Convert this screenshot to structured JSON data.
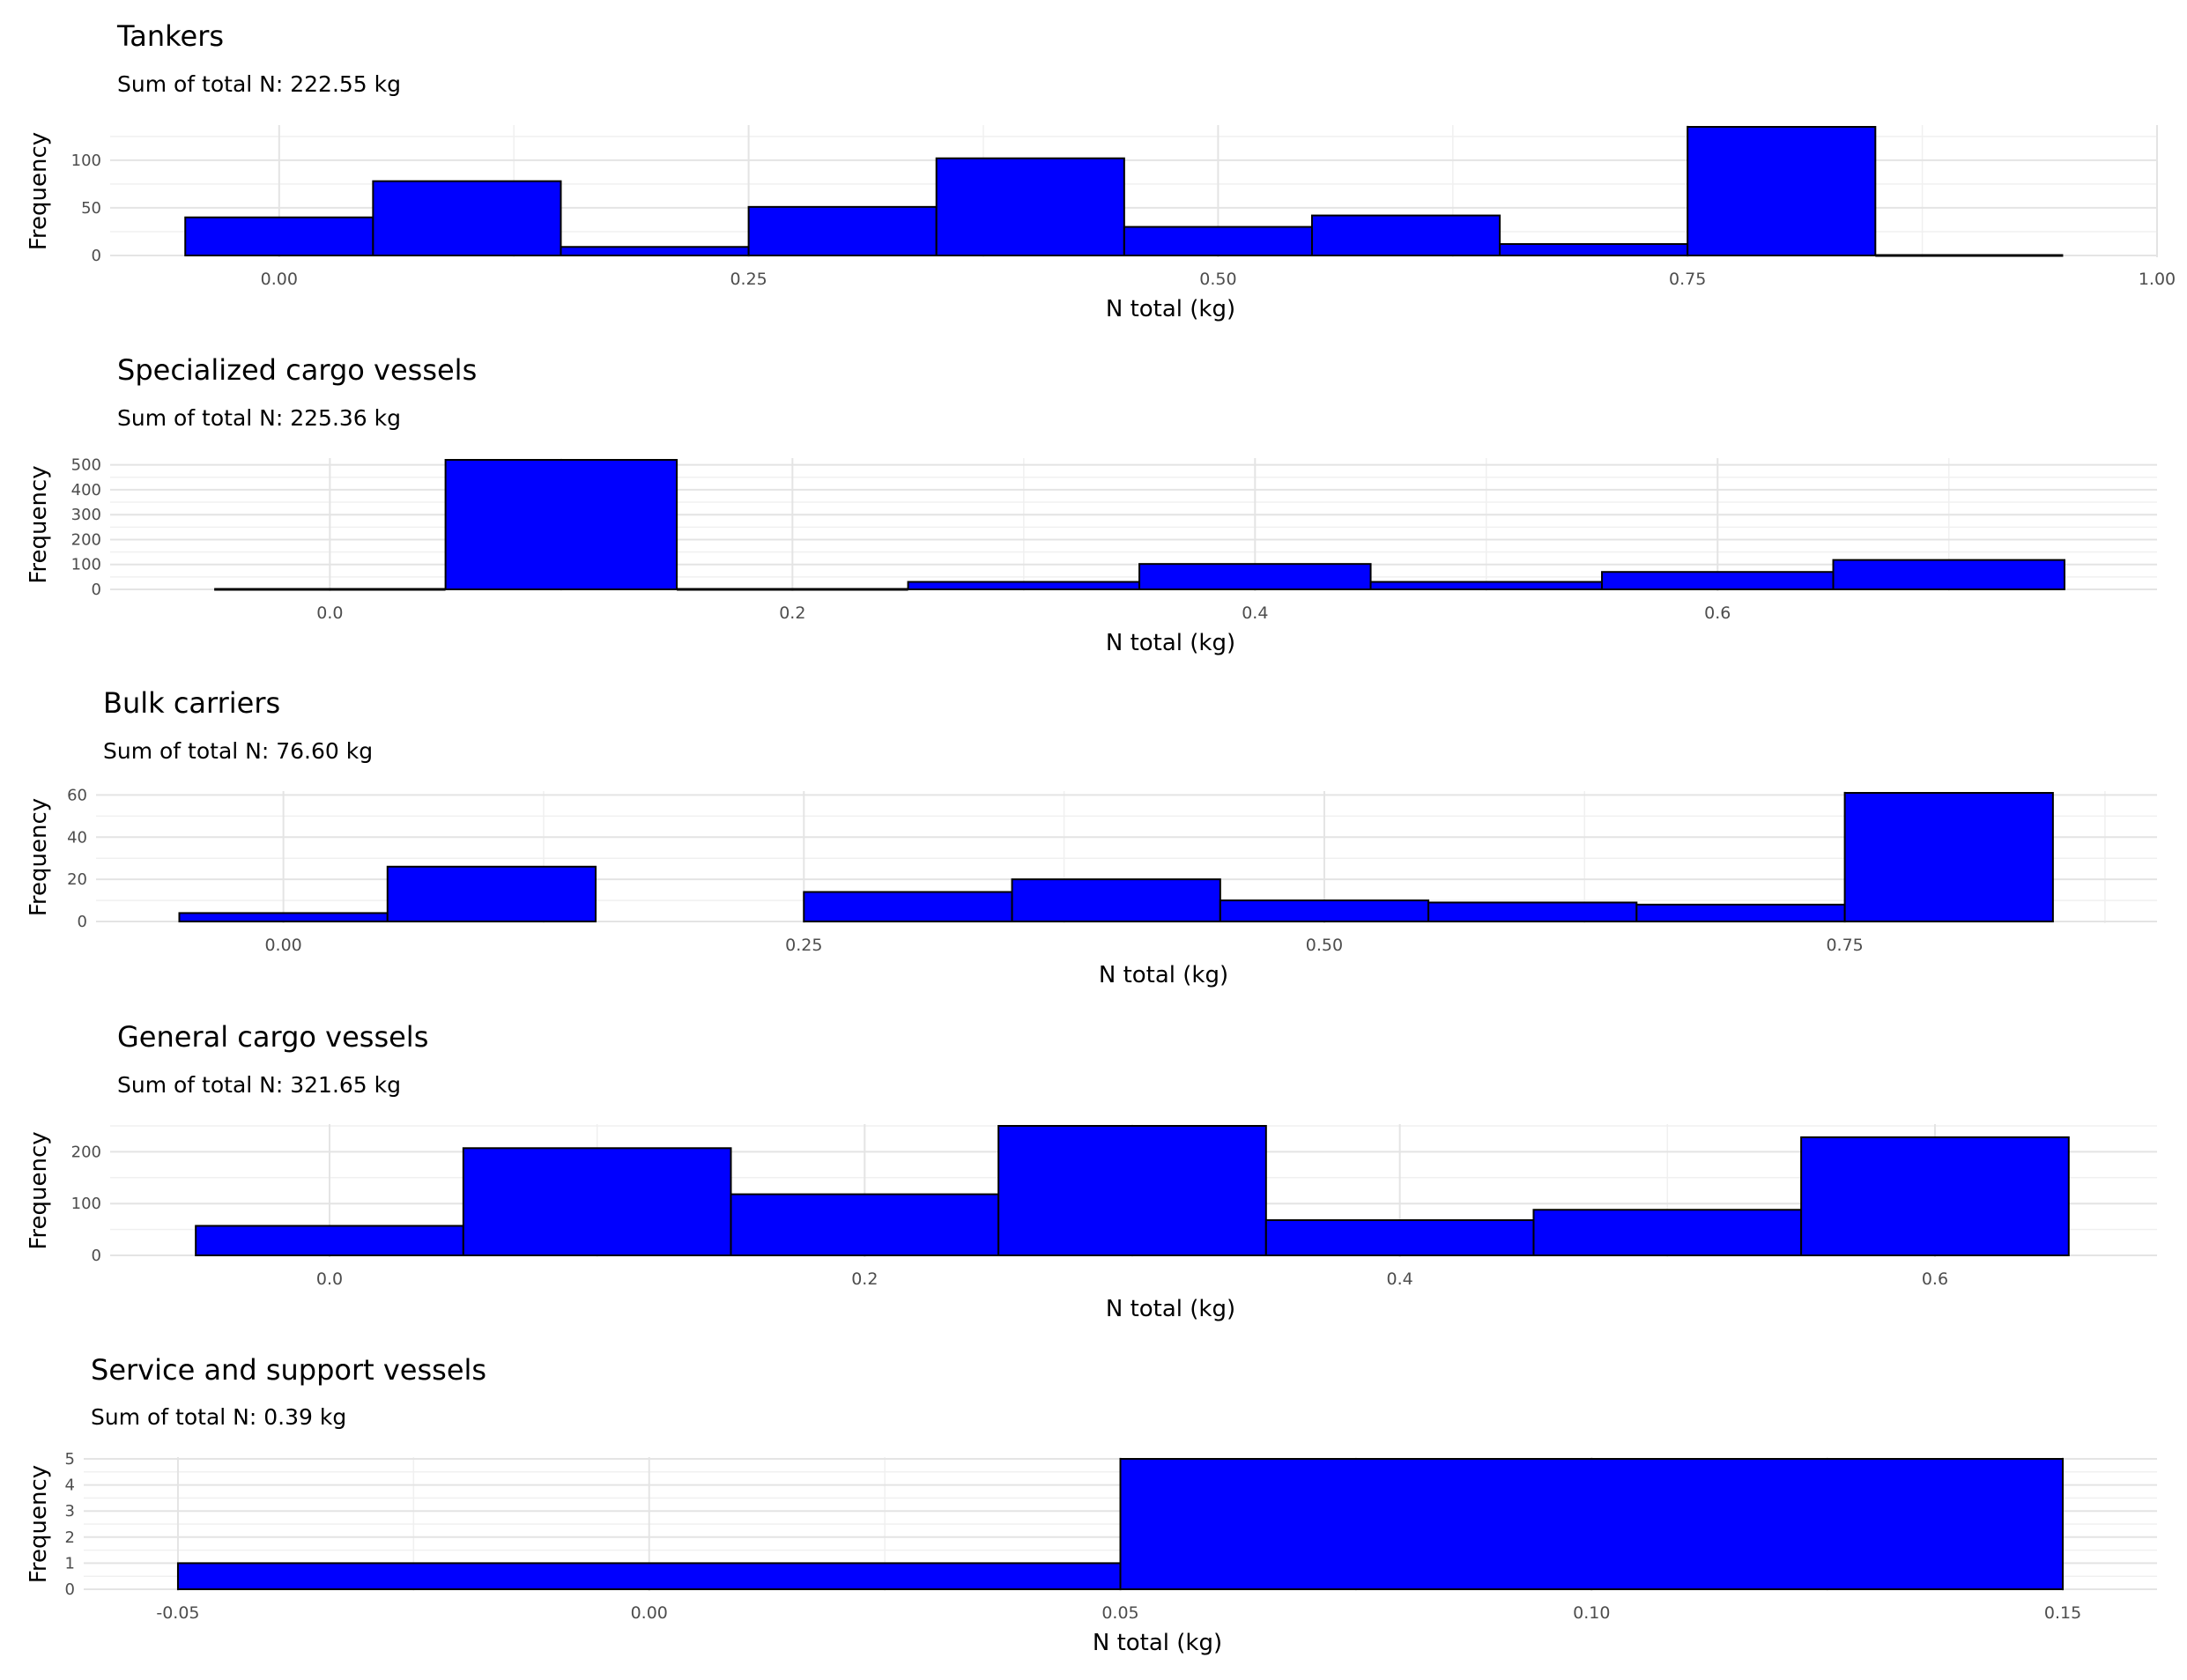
{
  "colors": {
    "bar_fill": "#0000ff",
    "bar_stroke": "#000000",
    "grid_major": "#e4e4e4",
    "grid_minor": "#f0f0f0",
    "text": "#000000",
    "tick_text": "#4d4d4d"
  },
  "chart_data": [
    {
      "type": "bar",
      "title": "Tankers",
      "subtitle": "Sum of total N: 222.55 kg",
      "xlabel": "N total (kg)",
      "ylabel": "Frequency",
      "bin_width": 0.1,
      "bins": [
        {
          "x0": -0.05,
          "x1": 0.05,
          "count": 40
        },
        {
          "x0": 0.05,
          "x1": 0.15,
          "count": 78
        },
        {
          "x0": 0.15,
          "x1": 0.25,
          "count": 9
        },
        {
          "x0": 0.25,
          "x1": 0.35,
          "count": 51
        },
        {
          "x0": 0.35,
          "x1": 0.45,
          "count": 102
        },
        {
          "x0": 0.45,
          "x1": 0.55,
          "count": 30
        },
        {
          "x0": 0.55,
          "x1": 0.65,
          "count": 42
        },
        {
          "x0": 0.65,
          "x1": 0.75,
          "count": 12
        },
        {
          "x0": 0.75,
          "x1": 0.85,
          "count": 135
        },
        {
          "x0": 0.85,
          "x1": 0.95,
          "count": 1
        }
      ],
      "xlim": [
        -0.09,
        1.0
      ],
      "x_ticks": [
        "0.00",
        "0.25",
        "0.50",
        "0.75",
        "1.00"
      ],
      "x_tick_values": [
        0.0,
        0.25,
        0.5,
        0.75,
        1.0
      ],
      "ylim": [
        0,
        135
      ],
      "y_ticks": [
        "0",
        "50",
        "100"
      ],
      "y_tick_values": [
        0,
        50,
        100
      ],
      "grid": true
    },
    {
      "type": "bar",
      "title": "Specialized cargo vessels",
      "subtitle": "Sum of total N: 225.36 kg",
      "xlabel": "N total (kg)",
      "ylabel": "Frequency",
      "bin_width": 0.1,
      "bins": [
        {
          "x0": -0.05,
          "x1": 0.05,
          "count": 2
        },
        {
          "x0": 0.05,
          "x1": 0.15,
          "count": 520
        },
        {
          "x0": 0.15,
          "x1": 0.25,
          "count": 3
        },
        {
          "x0": 0.25,
          "x1": 0.35,
          "count": 30
        },
        {
          "x0": 0.35,
          "x1": 0.45,
          "count": 102
        },
        {
          "x0": 0.45,
          "x1": 0.55,
          "count": 30
        },
        {
          "x0": 0.55,
          "x1": 0.65,
          "count": 70
        },
        {
          "x0": 0.65,
          "x1": 0.75,
          "count": 118
        }
      ],
      "xlim": [
        -0.095,
        0.79
      ],
      "x_ticks": [
        "0.0",
        "0.2",
        "0.4",
        "0.6"
      ],
      "x_tick_values": [
        0.0,
        0.2,
        0.4,
        0.6
      ],
      "ylim": [
        0,
        520
      ],
      "y_ticks": [
        "0",
        "100",
        "200",
        "300",
        "400",
        "500"
      ],
      "y_tick_values": [
        0,
        100,
        200,
        300,
        400,
        500
      ],
      "grid": true
    },
    {
      "type": "bar",
      "title": "Bulk carriers",
      "subtitle": "Sum of total N: 76.60 kg",
      "xlabel": "N total (kg)",
      "ylabel": "Frequency",
      "bin_width": 0.1,
      "bins": [
        {
          "x0": -0.05,
          "x1": 0.05,
          "count": 4
        },
        {
          "x0": 0.05,
          "x1": 0.15,
          "count": 26
        },
        {
          "x0": 0.15,
          "x1": 0.25,
          "count": 0
        },
        {
          "x0": 0.25,
          "x1": 0.35,
          "count": 14
        },
        {
          "x0": 0.35,
          "x1": 0.45,
          "count": 20
        },
        {
          "x0": 0.45,
          "x1": 0.55,
          "count": 10
        },
        {
          "x0": 0.55,
          "x1": 0.65,
          "count": 9
        },
        {
          "x0": 0.65,
          "x1": 0.75,
          "count": 8
        },
        {
          "x0": 0.75,
          "x1": 0.85,
          "count": 61
        }
      ],
      "xlim": [
        -0.09,
        0.9
      ],
      "x_ticks": [
        "0.00",
        "0.25",
        "0.50",
        "0.75"
      ],
      "x_tick_values": [
        0.0,
        0.25,
        0.5,
        0.75
      ],
      "ylim": [
        0,
        61
      ],
      "y_ticks": [
        "0",
        "20",
        "40",
        "60"
      ],
      "y_tick_values": [
        0,
        20,
        40,
        60
      ],
      "grid": true
    },
    {
      "type": "bar",
      "title": "General cargo vessels",
      "subtitle": "Sum of total N: 321.65 kg",
      "xlabel": "N total (kg)",
      "ylabel": "Frequency",
      "bin_width": 0.1,
      "bins": [
        {
          "x0": -0.05,
          "x1": 0.05,
          "count": 57
        },
        {
          "x0": 0.05,
          "x1": 0.15,
          "count": 207
        },
        {
          "x0": 0.15,
          "x1": 0.25,
          "count": 118
        },
        {
          "x0": 0.25,
          "x1": 0.35,
          "count": 250
        },
        {
          "x0": 0.35,
          "x1": 0.45,
          "count": 68
        },
        {
          "x0": 0.45,
          "x1": 0.55,
          "count": 88
        },
        {
          "x0": 0.55,
          "x1": 0.65,
          "count": 228
        }
      ],
      "xlim": [
        -0.082,
        0.683
      ],
      "x_ticks": [
        "0.0",
        "0.2",
        "0.4",
        "0.6"
      ],
      "x_tick_values": [
        0.0,
        0.2,
        0.4,
        0.6
      ],
      "ylim": [
        0,
        250
      ],
      "y_ticks": [
        "0",
        "100",
        "200"
      ],
      "y_tick_values": [
        0,
        100,
        200
      ],
      "grid": true
    },
    {
      "type": "bar",
      "title": "Service and support vessels",
      "subtitle": "Sum of total N: 0.39 kg",
      "xlabel": "N total (kg)",
      "ylabel": "Frequency",
      "bin_width": 0.1,
      "bins": [
        {
          "x0": -0.05,
          "x1": 0.05,
          "count": 1
        },
        {
          "x0": 0.05,
          "x1": 0.15,
          "count": 5
        }
      ],
      "xlim": [
        -0.06,
        0.16
      ],
      "x_ticks": [
        "-0.05",
        "0.00",
        "0.05",
        "0.10",
        "0.15"
      ],
      "x_tick_values": [
        -0.05,
        0.0,
        0.05,
        0.1,
        0.15
      ],
      "ylim": [
        0,
        5
      ],
      "y_ticks": [
        "0",
        "1",
        "2",
        "3",
        "4",
        "5"
      ],
      "y_tick_values": [
        0,
        1,
        2,
        3,
        4,
        5
      ],
      "grid": true
    }
  ]
}
